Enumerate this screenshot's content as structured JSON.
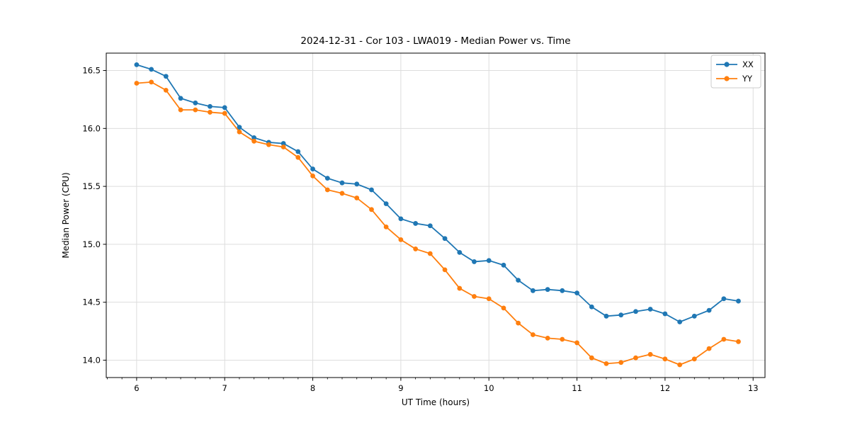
{
  "chart_data": {
    "type": "line",
    "title": "2024-12-31 - Cor 103 - LWA019 - Median Power vs. Time",
    "xlabel": "UT Time (hours)",
    "ylabel": "Median Power (CPU)",
    "xlim": [
      5.655,
      13.135
    ],
    "ylim": [
      13.85,
      16.65
    ],
    "xticks": [
      6,
      7,
      8,
      9,
      10,
      11,
      12,
      13
    ],
    "xtick_labels": [
      "6",
      "7",
      "8",
      "9",
      "10",
      "11",
      "12",
      "13"
    ],
    "yticks": [
      14.0,
      14.5,
      15.0,
      15.5,
      16.0,
      16.5
    ],
    "ytick_labels": [
      "14.0",
      "14.5",
      "15.0",
      "15.5",
      "16.0",
      "16.5"
    ],
    "x_minor_step": 0.1667,
    "grid": true,
    "grid_color": "#dddddd",
    "legend_position": "upper right",
    "x": [
      6.0,
      6.167,
      6.333,
      6.5,
      6.667,
      6.833,
      7.0,
      7.167,
      7.333,
      7.5,
      7.667,
      7.833,
      8.0,
      8.167,
      8.333,
      8.5,
      8.667,
      8.833,
      9.0,
      9.167,
      9.333,
      9.5,
      9.667,
      9.833,
      10.0,
      10.167,
      10.333,
      10.5,
      10.667,
      10.833,
      11.0,
      11.167,
      11.333,
      11.5,
      11.667,
      11.833,
      12.0,
      12.167,
      12.333,
      12.5,
      12.667,
      12.833
    ],
    "series": [
      {
        "name": "XX",
        "color": "#1f77b4",
        "values": [
          16.55,
          16.51,
          16.45,
          16.26,
          16.22,
          16.19,
          16.18,
          16.01,
          15.92,
          15.88,
          15.87,
          15.8,
          15.65,
          15.57,
          15.53,
          15.52,
          15.47,
          15.35,
          15.22,
          15.18,
          15.16,
          15.05,
          14.93,
          14.85,
          14.86,
          14.82,
          14.69,
          14.6,
          14.61,
          14.6,
          14.58,
          14.46,
          14.38,
          14.39,
          14.42,
          14.44,
          14.4,
          14.33,
          14.38,
          14.43,
          14.53,
          14.51
        ]
      },
      {
        "name": "YY",
        "color": "#ff7f0e",
        "values": [
          16.39,
          16.4,
          16.33,
          16.16,
          16.16,
          16.14,
          16.13,
          15.97,
          15.89,
          15.86,
          15.84,
          15.75,
          15.59,
          15.47,
          15.44,
          15.4,
          15.3,
          15.15,
          15.04,
          14.96,
          14.92,
          14.78,
          14.62,
          14.55,
          14.53,
          14.45,
          14.32,
          14.22,
          14.19,
          14.18,
          14.15,
          14.02,
          13.97,
          13.98,
          14.02,
          14.05,
          14.01,
          13.96,
          14.01,
          14.1,
          14.18,
          14.16
        ]
      }
    ]
  }
}
